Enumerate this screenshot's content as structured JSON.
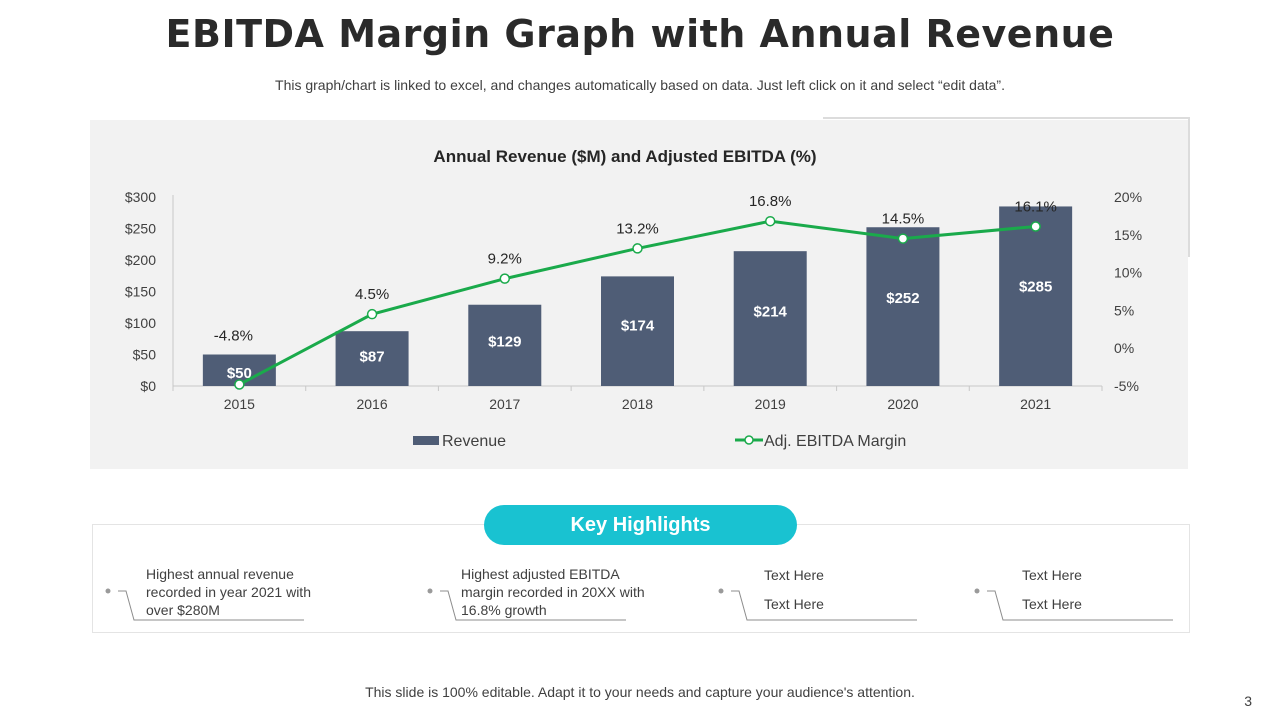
{
  "slide": {
    "title": "EBITDA Margin Graph with Annual Revenue",
    "subtitle": "This graph/chart is linked to excel, and changes automatically based on data. Just left click on it and select “edit data”.",
    "footer": "This slide is 100% editable. Adapt it to your needs and capture your audience's attention.",
    "page_number": "3"
  },
  "chart_data": {
    "type": "bar",
    "title": "Annual Revenue ($M) and Adjusted EBITDA (%)",
    "categories": [
      "2015",
      "2016",
      "2017",
      "2018",
      "2019",
      "2020",
      "2021"
    ],
    "series": [
      {
        "name": "Revenue",
        "kind": "bar",
        "axis": "left",
        "values": [
          50,
          87,
          129,
          174,
          214,
          252,
          285
        ],
        "labels": [
          "$50",
          "$87",
          "$129",
          "$174",
          "$214",
          "$252",
          "$285"
        ]
      },
      {
        "name": "Adj. EBITDA Margin",
        "kind": "line",
        "axis": "right",
        "values": [
          -4.8,
          4.5,
          9.2,
          13.2,
          16.8,
          14.5,
          16.1
        ],
        "labels": [
          "-4.8%",
          "4.5%",
          "9.2%",
          "13.2%",
          "16.8%",
          "14.5%",
          "16.1%"
        ]
      }
    ],
    "y_left": {
      "range": [
        0,
        300
      ],
      "ticks": [
        "$0",
        "$50",
        "$100",
        "$150",
        "$200",
        "$250",
        "$300"
      ]
    },
    "y_right": {
      "range": [
        -5,
        20
      ],
      "ticks": [
        "-5%",
        "0%",
        "5%",
        "10%",
        "15%",
        "20%"
      ]
    },
    "legend_position": "bottom",
    "grid": false,
    "colors": {
      "bar": "#4f5d76",
      "line": "#1aaa4b",
      "panel": "#f2f2f2"
    }
  },
  "highlights": {
    "heading": "Key Highlights",
    "items": [
      {
        "lines": [
          "Highest annual revenue",
          "recorded in year 2021 with",
          "over $280M"
        ]
      },
      {
        "lines": [
          "Highest adjusted EBITDA",
          "margin recorded in 20XX with",
          "16.8% growth"
        ]
      },
      {
        "lines": [
          "Text Here",
          "Text Here"
        ]
      },
      {
        "lines": [
          "Text Here",
          "Text Here"
        ]
      }
    ]
  }
}
